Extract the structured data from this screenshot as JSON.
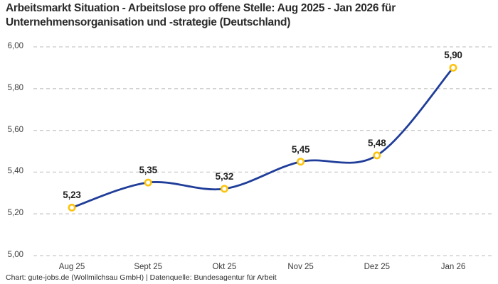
{
  "header": {
    "title": "Arbeitsmarkt Situation - Arbeitslose pro offene Stelle: Aug 2025 - Jan 2026 für Unternehmensorganisation und -strategie (Deutschland)",
    "title_lines": [
      "Arbeitsmarkt Situation - Arbeitslose pro offene Stelle: Aug 2025 - Jan 2026 für",
      "Unternehmensorganisation und -strategie (Deutschland)"
    ]
  },
  "footer": {
    "credit": "Chart: gute-jobs.de (Wollmilchsau GmbH) | Datenquelle: Bundesagentur für Arbeit"
  },
  "chart_data": {
    "type": "line",
    "title": "Arbeitsmarkt Situation - Arbeitslose pro offene Stelle: Aug 2025 - Jan 2026 für Unternehmensorganisation und -strategie (Deutschland)",
    "categories": [
      "Aug 25",
      "Sept 25",
      "Okt 25",
      "Nov 25",
      "Dez 25",
      "Jan 26"
    ],
    "values": [
      5.23,
      5.35,
      5.32,
      5.45,
      5.48,
      5.9
    ],
    "value_labels": [
      "5,23",
      "5,35",
      "5,32",
      "5,45",
      "5,48",
      "5,90"
    ],
    "y_ticks": [
      "6,00",
      "5,80",
      "5,60",
      "5,40",
      "5,20",
      "5,00"
    ],
    "y_tick_values": [
      6.0,
      5.8,
      5.6,
      5.4,
      5.2,
      5.0
    ],
    "ylim": [
      5.0,
      6.0
    ],
    "xlabel": "",
    "ylabel": "",
    "grid": "horizontal-dashed",
    "legend": "none",
    "line_color": "#1f3d99",
    "marker_ring_color": "#fcc40f",
    "marker_fill_color": "#ffffff",
    "gridline_color": "#c9c9c9",
    "label_color": "#222222"
  }
}
